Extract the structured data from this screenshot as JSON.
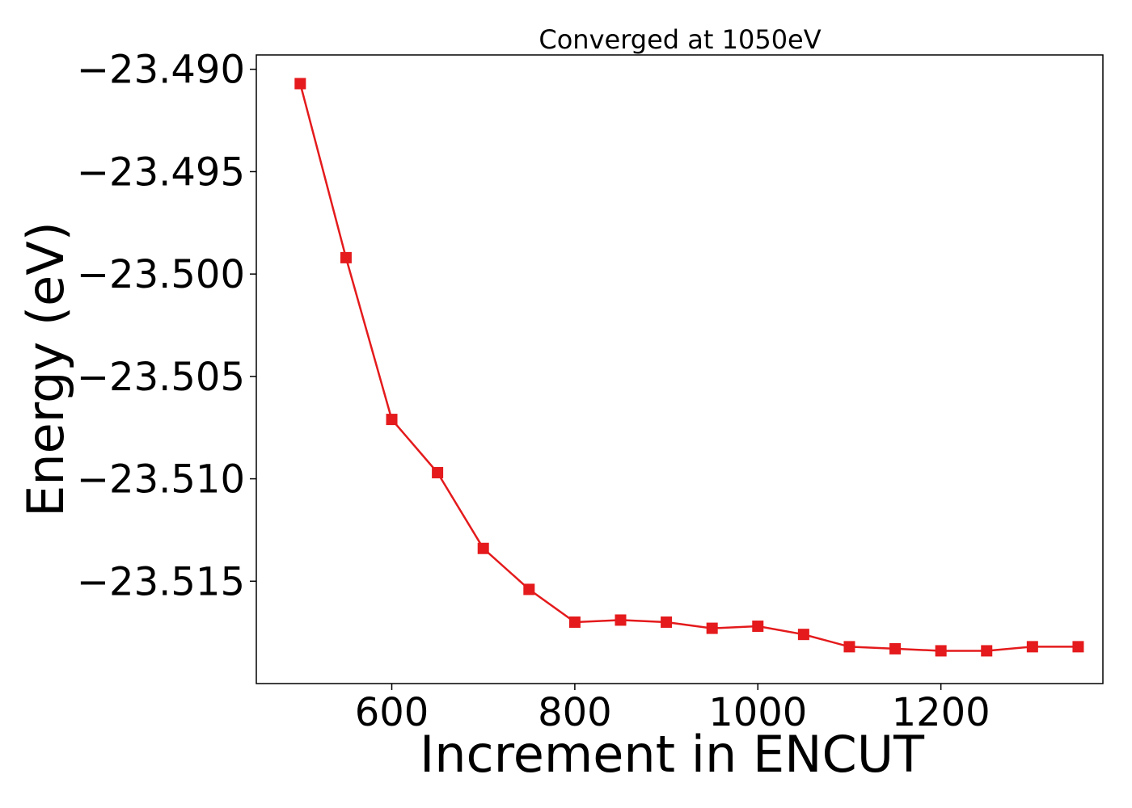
{
  "chart_data": {
    "type": "line",
    "title": "Converged at 1050eV",
    "xlabel": "Increment in ENCUT",
    "ylabel": "Energy (eV)",
    "xlim": [
      452,
      1377
    ],
    "ylim": [
      -23.52,
      -23.4893
    ],
    "xticks": [
      600,
      800,
      1000,
      1200
    ],
    "yticks": [
      -23.49,
      -23.495,
      -23.5,
      -23.505,
      -23.51,
      -23.515
    ],
    "ytick_labels": [
      "−23.490",
      "−23.495",
      "−23.500",
      "−23.505",
      "−23.510",
      "−23.515"
    ],
    "grid": false,
    "marker": "square",
    "color": "#e41a1c",
    "series": [
      {
        "x": [
          500,
          550,
          600,
          650,
          700,
          750,
          800,
          850,
          900,
          950,
          1000,
          1050,
          1100,
          1150,
          1200,
          1250,
          1300,
          1350
        ],
        "y": [
          -23.4907,
          -23.4992,
          -23.5071,
          -23.5097,
          -23.5134,
          -23.5154,
          -23.517,
          -23.5169,
          -23.517,
          -23.5173,
          -23.5172,
          -23.5176,
          -23.5182,
          -23.5183,
          -23.5184,
          -23.5184,
          -23.5182,
          -23.5182
        ]
      }
    ]
  }
}
